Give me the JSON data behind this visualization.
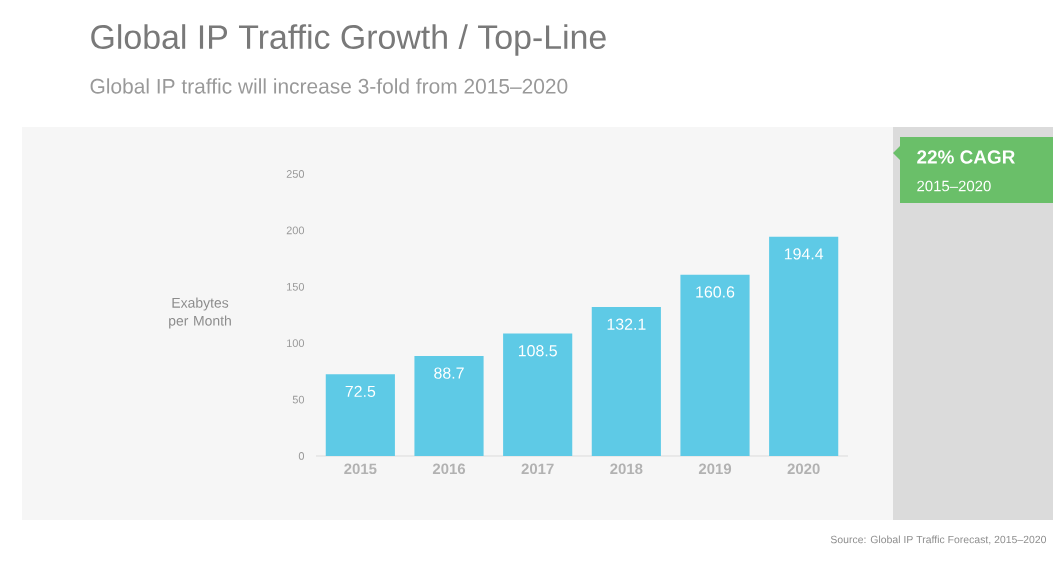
{
  "chart_data": {
    "type": "bar",
    "title": "Global IP Traffic Growth / Top-Line",
    "subtitle": "Global IP traffic will increase 3-fold from 2015–2020",
    "ylabel": "Exabytes per Month",
    "categories": [
      "2015",
      "2016",
      "2017",
      "2018",
      "2019",
      "2020"
    ],
    "values": [
      72.5,
      88.7,
      108.5,
      132.1,
      160.6,
      194.4
    ],
    "color": "#5ecae6",
    "ylim": [
      0,
      250
    ],
    "yticks": [
      0,
      50,
      100,
      150,
      200,
      250
    ],
    "data_labels": true,
    "annotations": [
      "22% CAGR",
      "2015–2020",
      "Source: Global IP Traffic Forecast, 2015–2020"
    ]
  }
}
